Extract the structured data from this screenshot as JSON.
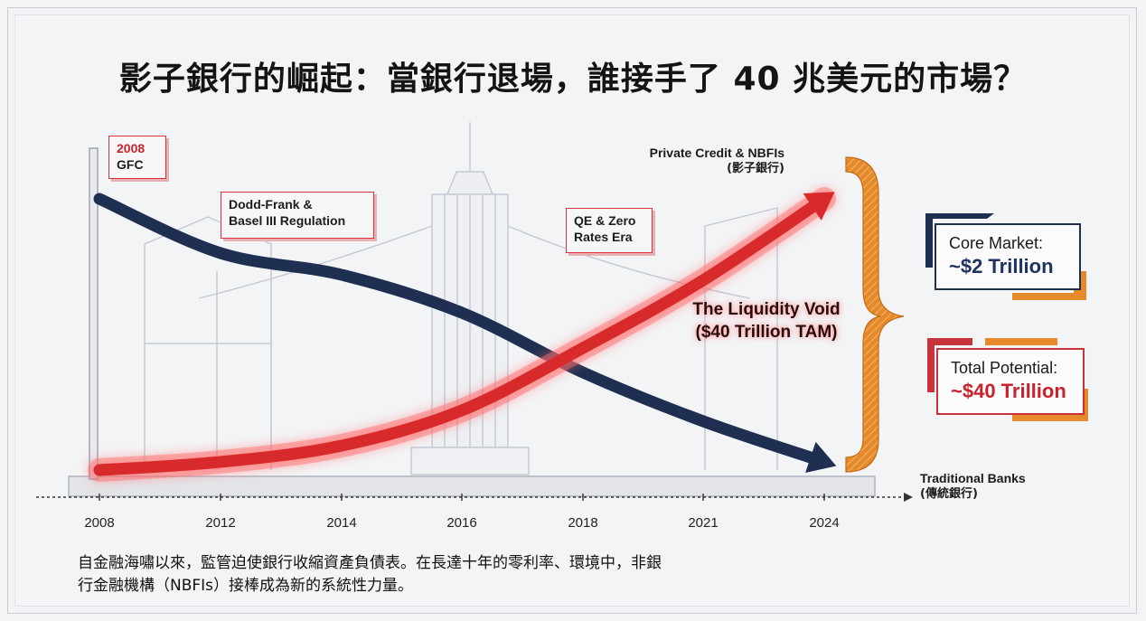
{
  "title": "影子銀行的崛起：當銀行退場，誰接手了 40 兆美元的市場？",
  "chart_data": {
    "type": "line",
    "x": [
      "2008",
      "2012",
      "2014",
      "2016",
      "2018",
      "2021",
      "2024"
    ],
    "series": [
      {
        "name": "Traditional Banks (傳統銀行)",
        "color": "#1e2f52",
        "values": [
          100,
          80,
          72,
          58,
          36,
          18,
          3
        ]
      },
      {
        "name": "Private Credit & NBFIs (影子銀行)",
        "color": "#d82a2a",
        "values": [
          0,
          3,
          9,
          22,
          45,
          70,
          100
        ]
      }
    ],
    "annotations": {
      "gfc": {
        "year": "2008",
        "label": "GFC"
      },
      "regulation": {
        "line1": "Dodd-Frank &",
        "line2": "Basel III Regulation"
      },
      "qe": {
        "line1": "QE & Zero",
        "line2": "Rates Era"
      },
      "void": {
        "line1": "The Liquidity Void",
        "line2": "($40 Trillion TAM)"
      }
    },
    "series_labels": {
      "red_line1": "Private Credit & NBFIs",
      "red_line2": "(影子銀行)",
      "blue_line1": "Traditional Banks",
      "blue_line2": "(傳統銀行)"
    },
    "boxes": {
      "core": {
        "label": "Core Market:",
        "value": "~$2 Trillion"
      },
      "total": {
        "label": "Total Potential:",
        "value": "~$40 Trillion"
      }
    },
    "colors": {
      "blue": "#1e2f52",
      "red": "#d82a2a",
      "orange": "#e58a2a"
    },
    "grid": false,
    "ylim": [
      0,
      100
    ]
  },
  "caption": {
    "line1": "自金融海嘯以來，監管迫使銀行收縮資產負債表。在長達十年的零利率、環境中，非銀",
    "line2": "行金融機構（NBFIs）接棒成為新的系統性力量。"
  }
}
